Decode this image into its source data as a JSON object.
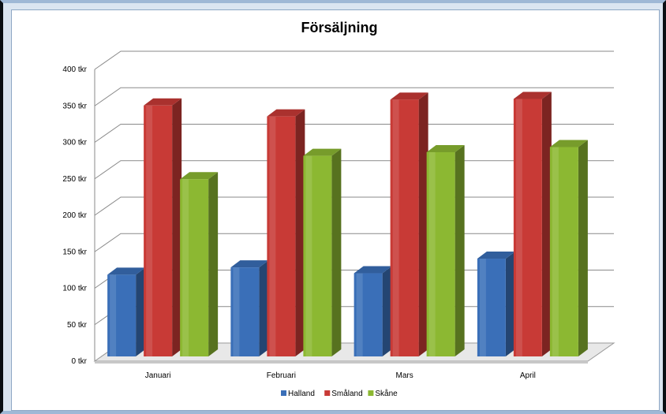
{
  "chart_data": {
    "type": "bar",
    "title": "Försäljning",
    "categories": [
      "Januari",
      "Februari",
      "Mars",
      "April"
    ],
    "series": [
      {
        "name": "Halland",
        "values": [
          125,
          135,
          127,
          147
        ],
        "color": "#3a6fb8"
      },
      {
        "name": "Småland",
        "values": [
          357,
          342,
          365,
          366
        ],
        "color": "#c83a36"
      },
      {
        "name": "Skåne",
        "values": [
          256,
          288,
          293,
          300
        ],
        "color": "#8cb832"
      }
    ],
    "y_ticks": [
      "0 tkr",
      "50 tkr",
      "100 tkr",
      "150 tkr",
      "200 tkr",
      "250 tkr",
      "300 tkr",
      "350 tkr",
      "400 tkr"
    ],
    "ylim": [
      0,
      400
    ],
    "grid": true,
    "legend_position": "bottom",
    "three_d": true
  }
}
